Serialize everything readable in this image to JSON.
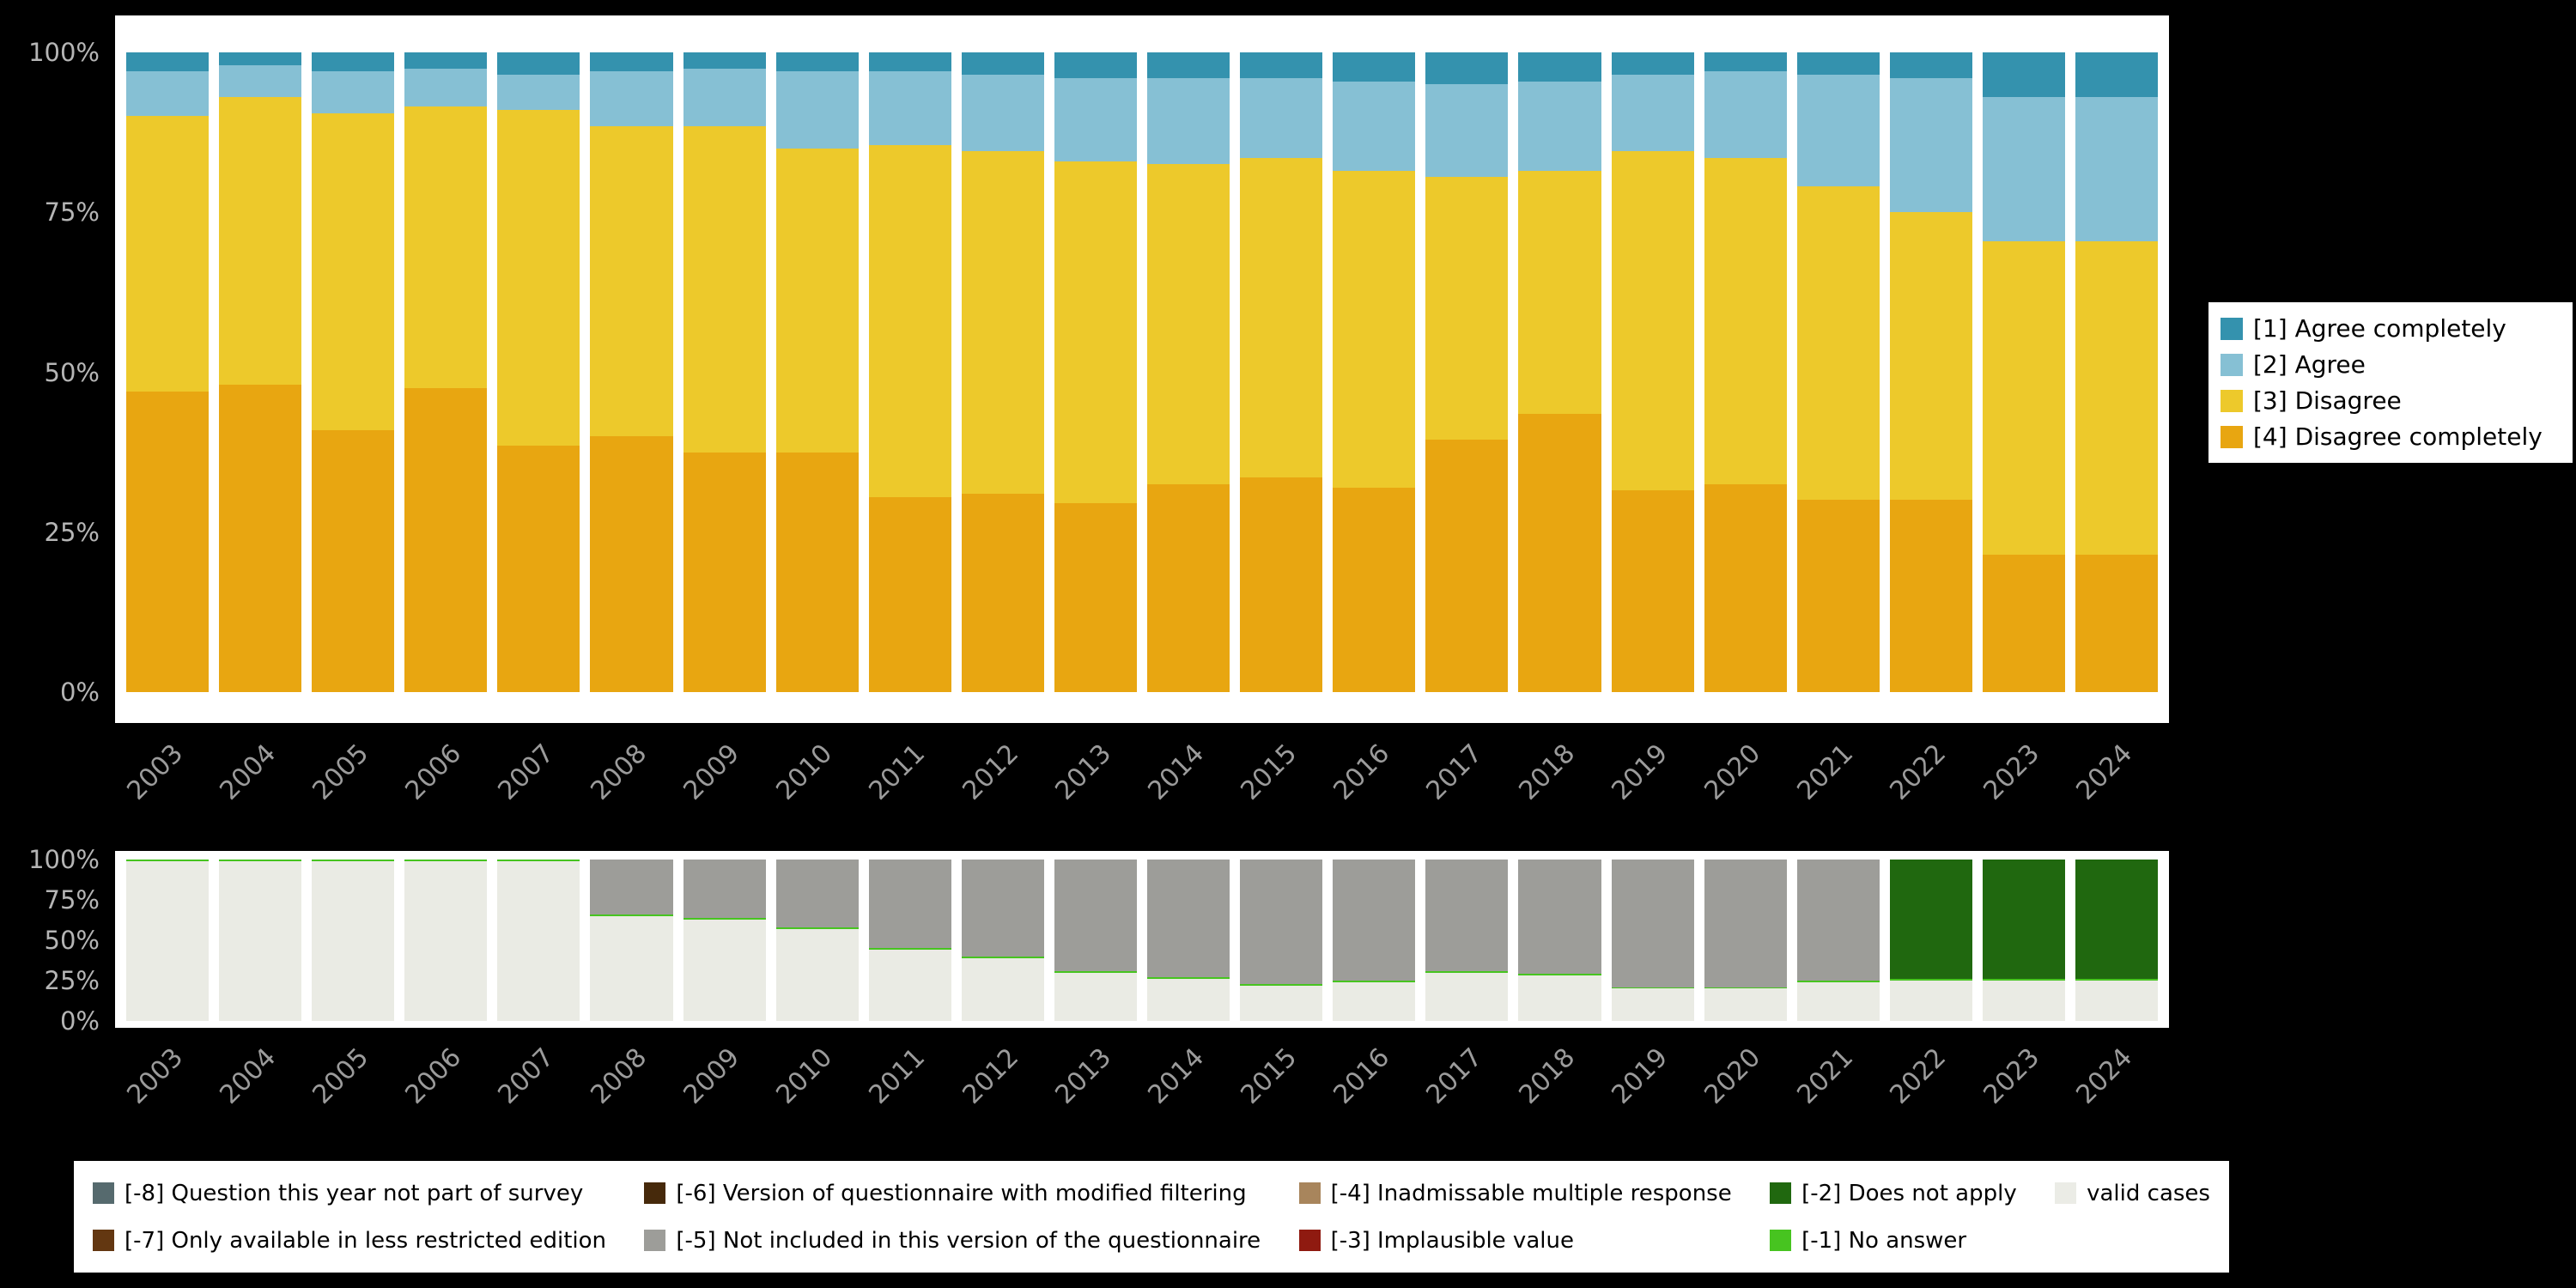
{
  "chart_data": [
    {
      "type": "bar",
      "variant": "stacked-100-percent",
      "title": "",
      "xlabel": "",
      "ylabel": "",
      "ylim": [
        0,
        100
      ],
      "grid": false,
      "legend_position": "right",
      "x": [
        "2003",
        "2004",
        "2005",
        "2006",
        "2007",
        "2008",
        "2009",
        "2010",
        "2011",
        "2012",
        "2013",
        "2014",
        "2015",
        "2016",
        "2017",
        "2018",
        "2019",
        "2020",
        "2021",
        "2022",
        "2023",
        "2024"
      ],
      "yticks": [
        "100%",
        "75%",
        "50%",
        "25%",
        "0%"
      ],
      "series": [
        {
          "key": "agree-completely",
          "name": "[1] Agree completely",
          "color": "#3492ae",
          "values": [
            3,
            2,
            3,
            2.5,
            3.5,
            3,
            2.5,
            3,
            3,
            3.5,
            4,
            4,
            4,
            4.5,
            5,
            4.5,
            3.5,
            3,
            3.5,
            4,
            7,
            7
          ]
        },
        {
          "key": "agree",
          "name": "[2] Agree",
          "color": "#86c0d4",
          "values": [
            7,
            5,
            6.5,
            6,
            5.5,
            8.5,
            9,
            12,
            11.5,
            12,
            13,
            13.5,
            12.5,
            14,
            14.5,
            14,
            12,
            13.5,
            17.5,
            21,
            22.5,
            22.5
          ]
        },
        {
          "key": "disagree",
          "name": "[3] Disagree",
          "color": "#edc92b",
          "values": [
            43,
            45,
            49.5,
            44,
            52.5,
            48.5,
            51,
            47.5,
            55,
            53.5,
            53.5,
            50,
            50,
            49.5,
            41,
            38,
            53,
            51,
            49,
            45,
            49,
            49
          ]
        },
        {
          "key": "disagree-completely",
          "name": "[4] Disagree completely",
          "color": "#e8a611",
          "values": [
            47,
            48,
            41,
            47.5,
            38.5,
            40,
            37.5,
            37.5,
            30.5,
            31,
            29.5,
            32.5,
            33.5,
            32,
            39.5,
            43.5,
            31.5,
            32.5,
            30,
            30,
            21.5,
            21.5
          ]
        }
      ]
    },
    {
      "type": "bar",
      "variant": "stacked-100-percent",
      "title": "",
      "xlabel": "",
      "ylabel": "",
      "ylim": [
        0,
        100
      ],
      "grid": false,
      "legend_position": "bottom",
      "x": [
        "2003",
        "2004",
        "2005",
        "2006",
        "2007",
        "2008",
        "2009",
        "2010",
        "2011",
        "2012",
        "2013",
        "2014",
        "2015",
        "2016",
        "2017",
        "2018",
        "2019",
        "2020",
        "2021",
        "2022",
        "2023",
        "2024"
      ],
      "yticks": [
        "100%",
        "75%",
        "50%",
        "25%",
        "0%"
      ],
      "series": [
        {
          "key": "does-not-apply",
          "name": "[-2] Does not apply",
          "color": "#20680f",
          "values": [
            0,
            0,
            0,
            0,
            0,
            0,
            0,
            0,
            0,
            0,
            0,
            0,
            0,
            0,
            0,
            0,
            0,
            0,
            0,
            74,
            74,
            74
          ]
        },
        {
          "key": "not-included",
          "name": "[-5] Not included in this version of the questionnaire",
          "color": "#9d9d99",
          "values": [
            0,
            0,
            0,
            0,
            0,
            34,
            36,
            42,
            55,
            60,
            69,
            73,
            77,
            75,
            69,
            71,
            79,
            79,
            75,
            0,
            0,
            0
          ]
        },
        {
          "key": "no-answer",
          "name": "[-1] No answer",
          "color": "#47c420",
          "values": [
            1,
            1,
            1,
            1,
            1,
            1,
            1,
            1,
            1,
            1,
            1,
            1,
            1,
            1,
            1,
            1,
            1,
            1,
            1,
            1,
            1,
            1
          ]
        },
        {
          "key": "valid-cases",
          "name": "valid cases",
          "color": "#eaebe4",
          "values": [
            99,
            99,
            99,
            99,
            99,
            65,
            63,
            57,
            44,
            39,
            30,
            26,
            22,
            24,
            30,
            28,
            20,
            20,
            24,
            25,
            25,
            25
          ]
        }
      ]
    }
  ],
  "legend_missing": {
    "items": [
      {
        "label": "[-8] Question this year not part of survey",
        "color": "#566a6e"
      },
      {
        "label": "[-6] Version of questionnaire with modified filtering",
        "color": "#46290b"
      },
      {
        "label": "[-4] Inadmissable multiple response",
        "color": "#a8855c"
      },
      {
        "label": "[-2] Does not apply",
        "color": "#20680f"
      },
      {
        "label": "valid cases",
        "color": "#ebece6"
      },
      {
        "label": "[-7] Only available in less restricted edition",
        "color": "#633711"
      },
      {
        "label": "[-5] Not included in this version of the questionnaire",
        "color": "#9d9d99"
      },
      {
        "label": "[-3] Implausible value",
        "color": "#8f1a10"
      },
      {
        "label": "[-1] No answer",
        "color": "#47c420"
      }
    ]
  }
}
